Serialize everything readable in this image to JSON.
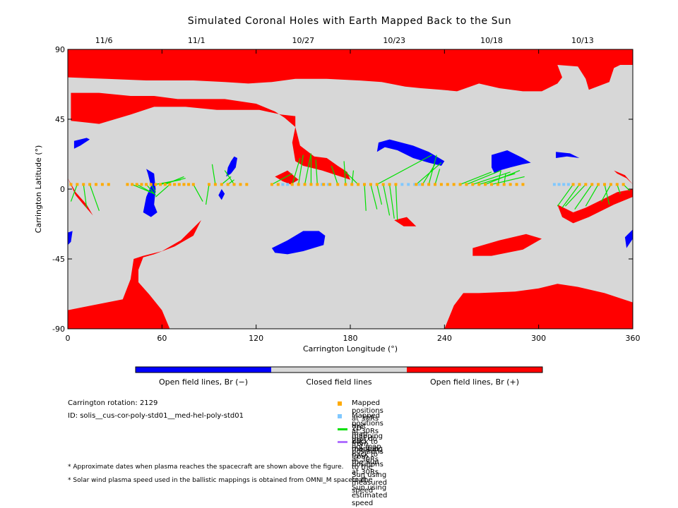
{
  "chart_data": {
    "type": "scatter",
    "title": "Simulated Coronal Holes with Earth Mapped Back to the Sun",
    "xlabel": "Carrington Longitude (°)",
    "ylabel": "Carrington Latitude (°)",
    "xlim": [
      0,
      360
    ],
    "ylim": [
      -90,
      90
    ],
    "x_ticks": [
      0,
      60,
      120,
      180,
      240,
      300,
      360
    ],
    "y_ticks": [
      -90,
      -45,
      0,
      45,
      90
    ],
    "top_axis_dates": [
      {
        "label": "11/6",
        "lon": 23
      },
      {
        "label": "11/1",
        "lon": 82
      },
      {
        "label": "10/27",
        "lon": 150
      },
      {
        "label": "10/23",
        "lon": 208
      },
      {
        "label": "10/18",
        "lon": 270
      },
      {
        "label": "10/13",
        "lon": 328
      }
    ],
    "colors": {
      "open_negative": "#0000ff",
      "closed": "#d7d7d7",
      "open_positive": "#ff0000",
      "mapped_back": "#ffaa00",
      "not_mapped_back": "#80c8ff",
      "measured_speed_line": "#00e000",
      "estimated_speed_line": "#b070ff"
    },
    "regions": {
      "positive": [
        [
          [
            0,
            90
          ],
          [
            0,
            72
          ],
          [
            25,
            71
          ],
          [
            50,
            70
          ],
          [
            80,
            70
          ],
          [
            100,
            69
          ],
          [
            115,
            68
          ],
          [
            130,
            69
          ],
          [
            145,
            71
          ],
          [
            165,
            71
          ],
          [
            185,
            70
          ],
          [
            200,
            69
          ],
          [
            215,
            66
          ],
          [
            225,
            65
          ],
          [
            238,
            64
          ],
          [
            248,
            63
          ],
          [
            262,
            68
          ],
          [
            275,
            65
          ],
          [
            290,
            63
          ],
          [
            302,
            63
          ],
          [
            312,
            68
          ],
          [
            315,
            72
          ],
          [
            312,
            80
          ],
          [
            325,
            79
          ],
          [
            330,
            71
          ],
          [
            332,
            64
          ],
          [
            345,
            69
          ],
          [
            348,
            78
          ],
          [
            352,
            80
          ],
          [
            360,
            80
          ],
          [
            360,
            90
          ]
        ],
        [
          [
            2,
            44
          ],
          [
            20,
            42
          ],
          [
            40,
            48
          ],
          [
            55,
            53
          ],
          [
            75,
            53
          ],
          [
            95,
            51
          ],
          [
            110,
            51
          ],
          [
            122,
            51
          ],
          [
            136,
            48
          ],
          [
            145,
            47
          ],
          [
            145,
            40
          ],
          [
            148,
            28
          ],
          [
            157,
            21
          ],
          [
            165,
            20
          ],
          [
            172,
            15
          ],
          [
            178,
            11
          ],
          [
            180,
            6
          ],
          [
            162,
            12
          ],
          [
            150,
            15
          ],
          [
            145,
            18
          ],
          [
            143,
            30
          ],
          [
            145,
            40
          ],
          [
            138,
            46
          ],
          [
            132,
            50
          ],
          [
            120,
            55
          ],
          [
            100,
            58
          ],
          [
            85,
            58
          ],
          [
            70,
            58
          ],
          [
            55,
            60
          ],
          [
            40,
            60
          ],
          [
            20,
            62
          ],
          [
            2,
            62
          ]
        ],
        [
          [
            140,
            12
          ],
          [
            147,
            6
          ],
          [
            142,
            3
          ],
          [
            137,
            5
          ],
          [
            132,
            8
          ]
        ],
        [
          [
            0,
            -90
          ],
          [
            0,
            -78
          ],
          [
            15,
            -75
          ],
          [
            35,
            -71
          ],
          [
            40,
            -58
          ],
          [
            42,
            -45
          ],
          [
            48,
            -43
          ],
          [
            60,
            -40
          ],
          [
            72,
            -33
          ],
          [
            80,
            -25
          ],
          [
            85,
            -20
          ],
          [
            80,
            -30
          ],
          [
            68,
            -37
          ],
          [
            55,
            -42
          ],
          [
            48,
            -44
          ],
          [
            45,
            -52
          ],
          [
            45,
            -60
          ],
          [
            52,
            -68
          ],
          [
            60,
            -78
          ],
          [
            65,
            -90
          ]
        ],
        [
          [
            0,
            7
          ],
          [
            5,
            -4
          ],
          [
            10,
            -10
          ],
          [
            16,
            -17
          ],
          [
            12,
            -10
          ],
          [
            5,
            -2
          ]
        ],
        [
          [
            208,
            -20
          ],
          [
            216,
            -18
          ],
          [
            222,
            -24
          ],
          [
            214,
            -24
          ]
        ],
        [
          [
            240,
            -90
          ],
          [
            246,
            -75
          ],
          [
            252,
            -67
          ],
          [
            262,
            -67
          ],
          [
            285,
            -66
          ],
          [
            300,
            -64
          ],
          [
            312,
            -61
          ],
          [
            325,
            -63
          ],
          [
            342,
            -67
          ],
          [
            360,
            -73
          ],
          [
            360,
            -90
          ]
        ],
        [
          [
            312,
            -10
          ],
          [
            322,
            -15
          ],
          [
            330,
            -12
          ],
          [
            342,
            -6
          ],
          [
            350,
            -2
          ],
          [
            360,
            0
          ],
          [
            360,
            -5
          ],
          [
            348,
            -10
          ],
          [
            332,
            -18
          ],
          [
            322,
            -22
          ],
          [
            315,
            -18
          ]
        ],
        [
          [
            348,
            12
          ],
          [
            355,
            9
          ],
          [
            360,
            3
          ],
          [
            356,
            7
          ],
          [
            350,
            10
          ]
        ],
        [
          [
            258,
            -38
          ],
          [
            275,
            -33
          ],
          [
            292,
            -29
          ],
          [
            302,
            -32
          ],
          [
            290,
            -39
          ],
          [
            270,
            -43
          ],
          [
            258,
            -43
          ]
        ]
      ],
      "negative": [
        [
          [
            4,
            31
          ],
          [
            12,
            33
          ],
          [
            14,
            32
          ],
          [
            8,
            28
          ],
          [
            4,
            26
          ]
        ],
        [
          [
            50,
            13
          ],
          [
            55,
            10
          ],
          [
            56,
            0
          ],
          [
            55,
            -10
          ],
          [
            57,
            -15
          ],
          [
            53,
            -18
          ],
          [
            48,
            -15
          ],
          [
            50,
            -5
          ],
          [
            53,
            2
          ],
          [
            51,
            10
          ]
        ],
        [
          [
            106,
            21
          ],
          [
            108,
            20
          ],
          [
            107,
            14
          ],
          [
            104,
            10
          ],
          [
            101,
            8
          ],
          [
            102,
            14
          ],
          [
            104,
            18
          ]
        ],
        [
          [
            98,
            0
          ],
          [
            100,
            -3
          ],
          [
            98,
            -7
          ],
          [
            96,
            -4
          ]
        ],
        [
          [
            130,
            -38
          ],
          [
            140,
            -33
          ],
          [
            150,
            -27
          ],
          [
            160,
            -27
          ],
          [
            164,
            -30
          ],
          [
            163,
            -36
          ],
          [
            150,
            -40
          ],
          [
            140,
            -42
          ],
          [
            132,
            -41
          ]
        ],
        [
          [
            198,
            30
          ],
          [
            205,
            32
          ],
          [
            220,
            28
          ],
          [
            230,
            24
          ],
          [
            240,
            18
          ],
          [
            238,
            15
          ],
          [
            230,
            17
          ],
          [
            220,
            20
          ],
          [
            210,
            25
          ],
          [
            202,
            27
          ],
          [
            197,
            24
          ]
        ],
        [
          [
            270,
            22
          ],
          [
            280,
            25
          ],
          [
            290,
            20
          ],
          [
            295,
            17
          ],
          [
            290,
            16
          ],
          [
            282,
            14
          ],
          [
            275,
            12
          ],
          [
            272,
            10
          ],
          [
            270,
            14
          ]
        ],
        [
          [
            311,
            24
          ],
          [
            320,
            23
          ],
          [
            326,
            20
          ],
          [
            318,
            21
          ],
          [
            311,
            20
          ]
        ],
        [
          [
            0,
            -28
          ],
          [
            3,
            -27
          ],
          [
            2,
            -34
          ],
          [
            0,
            -36
          ]
        ],
        [
          [
            355,
            -31
          ],
          [
            360,
            -26
          ],
          [
            360,
            -32
          ],
          [
            356,
            -38
          ]
        ]
      ]
    },
    "mapped_lon": [
      2,
      6,
      10,
      14,
      18,
      22,
      26,
      38,
      41,
      44,
      47,
      50,
      53,
      56,
      59,
      62,
      65,
      68,
      71,
      74,
      77,
      80,
      90,
      94,
      98,
      102,
      106,
      110,
      114,
      130,
      134,
      143,
      147,
      151,
      155,
      159,
      163,
      167,
      172,
      177,
      181,
      185,
      189,
      193,
      197,
      201,
      205,
      209,
      222,
      226,
      230,
      234,
      238,
      242,
      246,
      250,
      254,
      258,
      262,
      266,
      270,
      274,
      278,
      282,
      286,
      290,
      322,
      326,
      330,
      334,
      338,
      342,
      346,
      350,
      354
    ],
    "not_mapped_lon": [
      137,
      140,
      162,
      166,
      213,
      217,
      221,
      224,
      310,
      313,
      316,
      319
    ],
    "measured_mappings": [
      [
        6,
        3,
        2,
        -8
      ],
      [
        10,
        3,
        12,
        -12
      ],
      [
        14,
        3,
        20,
        -14
      ],
      [
        41,
        3,
        55,
        -3
      ],
      [
        44,
        3,
        55,
        -3
      ],
      [
        50,
        3,
        56,
        -4
      ],
      [
        53,
        3,
        56,
        -2
      ],
      [
        56,
        3,
        72,
        6
      ],
      [
        59,
        3,
        75,
        7
      ],
      [
        62,
        3,
        74,
        8
      ],
      [
        65,
        3,
        56,
        -5
      ],
      [
        80,
        3,
        86,
        -8
      ],
      [
        90,
        3,
        88,
        -10
      ],
      [
        94,
        3,
        92,
        16
      ],
      [
        98,
        3,
        104,
        8
      ],
      [
        102,
        3,
        106,
        6
      ],
      [
        106,
        3,
        100,
        12
      ],
      [
        130,
        3,
        143,
        10
      ],
      [
        143,
        3,
        148,
        20
      ],
      [
        147,
        3,
        150,
        22
      ],
      [
        151,
        3,
        155,
        23
      ],
      [
        155,
        3,
        155,
        22
      ],
      [
        159,
        3,
        158,
        19
      ],
      [
        172,
        3,
        168,
        15
      ],
      [
        177,
        3,
        176,
        18
      ],
      [
        181,
        3,
        182,
        12
      ],
      [
        185,
        3,
        176,
        12
      ],
      [
        189,
        3,
        190,
        -14
      ],
      [
        193,
        3,
        197,
        -13
      ],
      [
        197,
        3,
        200,
        -10
      ],
      [
        201,
        3,
        205,
        -17
      ],
      [
        205,
        3,
        208,
        -19
      ],
      [
        209,
        3,
        210,
        -20
      ],
      [
        197,
        3,
        232,
        22
      ],
      [
        222,
        3,
        238,
        17
      ],
      [
        226,
        3,
        234,
        16
      ],
      [
        230,
        3,
        235,
        22
      ],
      [
        234,
        3,
        237,
        13
      ],
      [
        250,
        3,
        270,
        11
      ],
      [
        254,
        3,
        276,
        12
      ],
      [
        258,
        3,
        282,
        11
      ],
      [
        262,
        3,
        285,
        10
      ],
      [
        266,
        3,
        288,
        12
      ],
      [
        270,
        3,
        291,
        8
      ],
      [
        274,
        3,
        276,
        12
      ],
      [
        278,
        3,
        279,
        10
      ],
      [
        322,
        3,
        312,
        -11
      ],
      [
        326,
        3,
        315,
        -12
      ],
      [
        330,
        3,
        317,
        -11
      ],
      [
        334,
        3,
        323,
        -13
      ],
      [
        338,
        3,
        330,
        -11
      ],
      [
        342,
        3,
        345,
        -10
      ],
      [
        346,
        3,
        340,
        -8
      ],
      [
        350,
        3,
        352,
        -3
      ],
      [
        354,
        3,
        358,
        -1
      ]
    ],
    "estimated_mappings": []
  },
  "colorbar": {
    "labels": [
      "Open field lines, Br (−)",
      "Closed field lines",
      "Open field lines, Br (+)"
    ],
    "colors": [
      "#0000ff",
      "#d7d7d7",
      "#ff0000"
    ]
  },
  "info": {
    "rotation": "Carrington rotation: 2129",
    "id": "ID: solis__cus-cor-poly-std01__med-hel-poly-std01"
  },
  "legend": {
    "mapped": "Mapped positions at 30Rs that map back to the Sun",
    "not_mapped": "Mapped positions at 30Rs that do not map back to the Sun",
    "measured": "2D mapping from positions at 30Rs to the Sun using measured speed",
    "estimated": "2D mapping from positions at 30Rs to the Sun using estimated speed"
  },
  "footnotes": [
    "* Approximate dates when plasma reaches the spacecraft are shown above the figure.",
    "* Solar wind plasma speed used in the ballistic mappings is obtained from OMNI_M spacecraft."
  ]
}
